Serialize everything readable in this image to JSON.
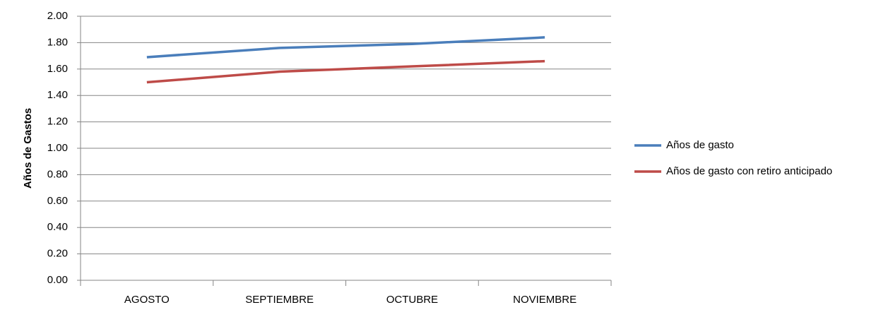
{
  "chart_data": {
    "type": "line",
    "y_label": "Años de Gastos",
    "categories": [
      "AGOSTO",
      "SEPTIEMBRE",
      "OCTUBRE",
      "NOVIEMBRE"
    ],
    "series": [
      {
        "name": "Años de gasto",
        "color": "#4a7ebb",
        "values": [
          1.69,
          1.76,
          1.79,
          1.84
        ]
      },
      {
        "name": "Años de gasto con retiro anticipado",
        "color": "#be4b48",
        "values": [
          1.5,
          1.58,
          1.62,
          1.66
        ]
      }
    ],
    "ylim": [
      0,
      2
    ],
    "yticks": [
      {
        "value": 0,
        "label": "0.00"
      },
      {
        "value": 0.2,
        "label": "0.20"
      },
      {
        "value": 0.4,
        "label": "0.40"
      },
      {
        "value": 0.6,
        "label": "0.60"
      },
      {
        "value": 0.8,
        "label": "0.80"
      },
      {
        "value": 1,
        "label": "1.00"
      },
      {
        "value": 1.2,
        "label": "1.20"
      },
      {
        "value": 1.4,
        "label": "1.40"
      },
      {
        "value": 1.6,
        "label": "1.60"
      },
      {
        "value": 1.8,
        "label": "1.80"
      },
      {
        "value": 2,
        "label": "2.00"
      }
    ],
    "grid": true,
    "legend": "right"
  }
}
